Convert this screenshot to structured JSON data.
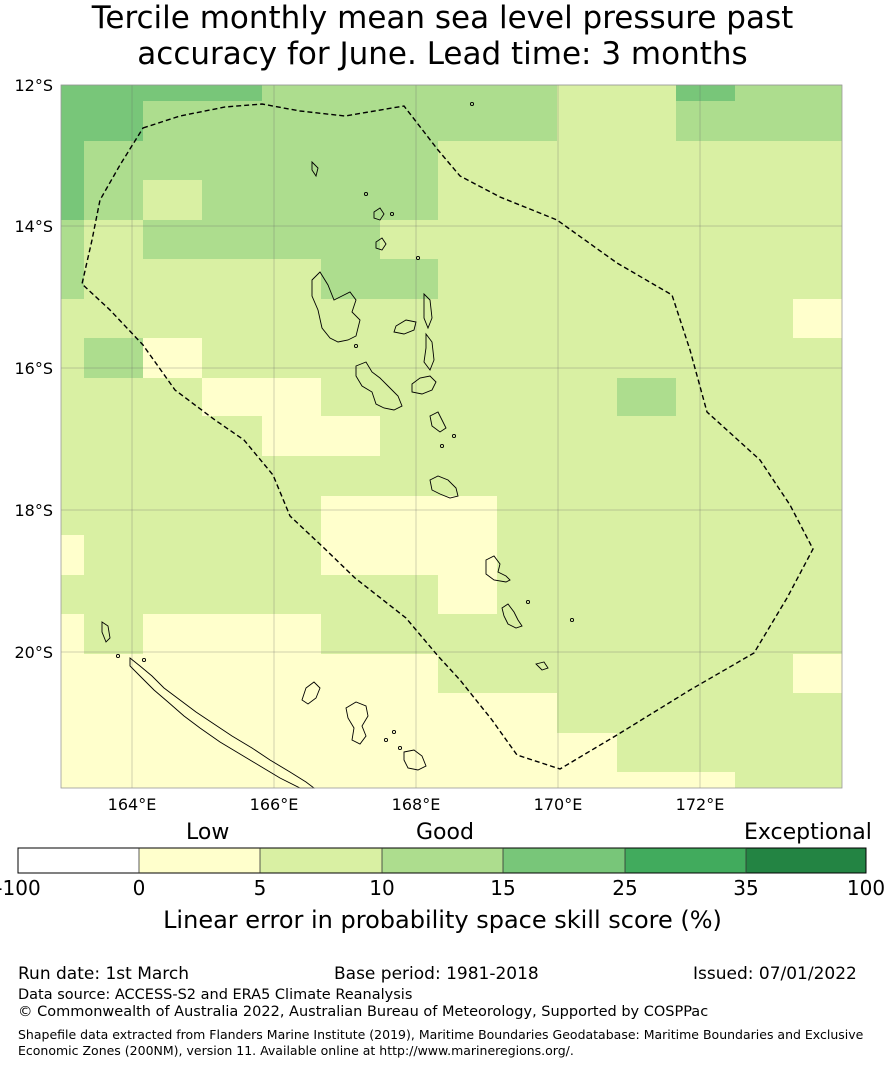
{
  "title": "Tercile monthly mean sea level pressure past\naccuracy for June. Lead time: 3 months",
  "map": {
    "lat_labels": [
      "12°S",
      "14°S",
      "16°S",
      "18°S",
      "20°S"
    ],
    "lon_labels": [
      "164°E",
      "166°E",
      "168°E",
      "170°E",
      "172°E"
    ],
    "extent": {
      "lon_min": 163.0,
      "lon_max": 174.0,
      "lat_min": -21.9,
      "lat_max": -12.0
    },
    "cell_size_deg": 0.833,
    "boundary": "Vanuatu EEZ (200NM)",
    "colors": [
      "#ffffff",
      "#ffffcc",
      "#d9f0a3",
      "#addd8e",
      "#78c679",
      "#41ab5d",
      "#238443"
    ]
  },
  "colorbar": {
    "category_labels": {
      "low": "Low",
      "good": "Good",
      "exceptional": "Exceptional"
    },
    "ticks": [
      "-100",
      "0",
      "5",
      "10",
      "15",
      "25",
      "35",
      "100"
    ],
    "label": "Linear error in probability space skill score (%)"
  },
  "footer": {
    "run_date": "Run date: 1st March",
    "base_period": "Base period: 1981-2018",
    "issued": "Issued: 07/01/2022",
    "data_source": "Data source: ACCESS-S2 and ERA5 Climate Reanalysis",
    "copyright": "© Commonwealth of Australia 2022, Australian Bureau of Meteorology, Supported by COSPPac",
    "shapefile_line1": "Shapefile data extracted from Flanders Marine Institute (2019), Maritime Boundaries Geodatabase: Maritime Boundaries and Exclusive",
    "shapefile_line2": "Economic Zones (200NM), version 11. Available online at http://www.marineregions.org/."
  }
}
